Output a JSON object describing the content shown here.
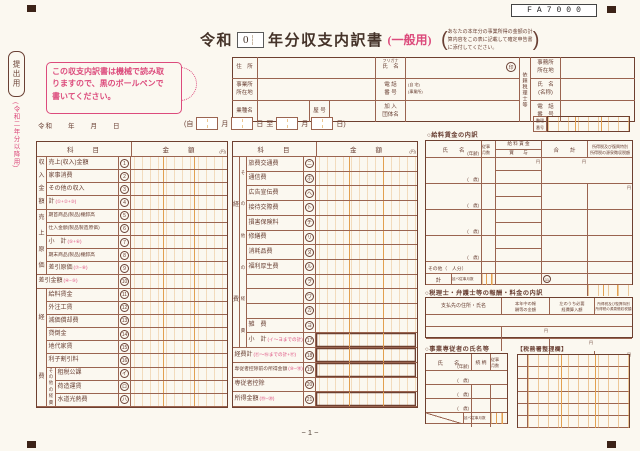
{
  "page": {
    "number": "− 1 −",
    "form_code": "FA7000"
  },
  "margin": {
    "submission": "提出用",
    "edition": "(令和二年分以降用)",
    "notice": "この収支内訳書は機械で読み取\nりますので、黒のボールペンで\n書いてください。"
  },
  "title": {
    "era": "令和",
    "year": "0",
    "main": "年分収支内訳書",
    "kind": "(一般用)",
    "paren_l": "(",
    "paren_r": ")",
    "note": "あなたの本年分の事業所得の金額の計\n算内容をこの表に記載して確定申告書\nに添付してください。"
  },
  "identity": {
    "address": "住　所",
    "biz_address": "事業所\n所在地",
    "industry": "業種名",
    "trade": "屋 号",
    "furigana": "フリガナ",
    "name": "氏　名",
    "seal": "印",
    "phone": "電 話\n番 号",
    "phone_home": "(自 宅)",
    "phone_biz": "(事業所)",
    "org": "加 入\n団体名",
    "agent": "依頼税理士等",
    "agent_office": "事務所\n所在地",
    "agent_name": "氏　名\n(名称)",
    "agent_phone": "電　話\n番　号"
  },
  "dateline": {
    "era_line": "令和　　年　　月　　日",
    "open": "(自",
    "m1": "月",
    "d1": "日",
    "to": "至",
    "m2": "月",
    "d2": "日)",
    "seiri_label": "整理\n番号"
  },
  "ledger": {
    "subject": "科　　目",
    "amount": "金　　額",
    "yen": "(円)",
    "strips": {
      "income": "収入金額",
      "cost": "売上原価",
      "expense": "経費",
      "other": "その他の経費"
    },
    "left_rows": [
      {
        "i": 1,
        "label": "売上(収入)金額",
        "code": "1"
      },
      {
        "i": 1,
        "label": "家事消費",
        "code": "2"
      },
      {
        "i": 1,
        "label": "その他の収入",
        "code": "3"
      },
      {
        "i": 1,
        "label": "計",
        "formula": "(①+②+③)",
        "code": "4"
      },
      {
        "i": 1,
        "label": "期首商品(製品)棚卸高",
        "code": "5",
        "small": true
      },
      {
        "i": 1,
        "label": "仕入金額(製品製造原価)",
        "code": "6",
        "small": true
      },
      {
        "i": 1,
        "label": "小　計",
        "formula": "(⑤+⑥)",
        "code": "7"
      },
      {
        "i": 1,
        "label": "期末商品(製品)棚卸高",
        "code": "8",
        "small": true
      },
      {
        "i": 1,
        "label": "差引原価",
        "formula": "(⑦−⑧)",
        "code": "9"
      },
      {
        "i": 0,
        "label": "差引金額",
        "formula": "(④−⑨)",
        "code": "10"
      },
      {
        "i": 1,
        "label": "給料賃金",
        "code": "11"
      },
      {
        "i": 1,
        "label": "外注工賃",
        "code": "12"
      },
      {
        "i": 1,
        "label": "減価償却費",
        "code": "13"
      },
      {
        "i": 1,
        "label": "貸倒金",
        "code": "14"
      },
      {
        "i": 1,
        "label": "地代家賃",
        "code": "15"
      },
      {
        "i": 1,
        "label": "利子割引料",
        "code": "16"
      },
      {
        "i": 2,
        "label": "租税公課",
        "code": "イ"
      },
      {
        "i": 2,
        "label": "荷造運賃",
        "code": "ロ"
      },
      {
        "i": 2,
        "label": "水道光熱費",
        "code": "ハ"
      }
    ],
    "middle_rows": [
      {
        "i": 2,
        "label": "旅費交通費",
        "code": "ニ"
      },
      {
        "i": 2,
        "label": "通信費",
        "code": "ホ"
      },
      {
        "i": 2,
        "label": "広告宣伝費",
        "code": "ヘ"
      },
      {
        "i": 2,
        "label": "接待交際費",
        "code": "ト"
      },
      {
        "i": 2,
        "label": "損害保険料",
        "code": "チ"
      },
      {
        "i": 2,
        "label": "修繕費",
        "code": "リ"
      },
      {
        "i": 2,
        "label": "消耗品費",
        "code": "ヌ"
      },
      {
        "i": 2,
        "label": "福利厚生費",
        "code": "ル"
      },
      {
        "i": 2,
        "label": "",
        "code": "ヲ"
      },
      {
        "i": 2,
        "label": "",
        "code": "ワ"
      },
      {
        "i": 2,
        "label": "",
        "code": "カ"
      },
      {
        "i": 2,
        "label": "雑　費",
        "code": "ヨ"
      },
      {
        "i": 2,
        "label": "小　計",
        "formula": "(イ〜ヨまでの計)",
        "code": "17",
        "bold": true
      },
      {
        "i": 0,
        "label": "経費計",
        "formula": "(⑪〜⑯までの計+⑰)",
        "code": "18",
        "bold": true
      },
      {
        "i": 0,
        "label": "専従者控除前の所得金額",
        "formula": "(⑩−⑱)",
        "code": "19",
        "bold": true,
        "small": true
      },
      {
        "i": 0,
        "label": "専従者控除",
        "code": "20"
      },
      {
        "i": 0,
        "label": "所得金額",
        "formula": "(⑲−⑳)",
        "code": "21",
        "bold": true
      }
    ]
  },
  "salary": {
    "heading": "○給料賃金の内訳",
    "name": "氏　　名",
    "age": "(年齢)",
    "months": "従事\n月数",
    "wage": "給 料 賃 金",
    "bonus": "賞　　与",
    "total": "合　　計",
    "tax1": "所得税及び復興特別",
    "tax2": "所得税の源泉徴収税額",
    "yen": "円",
    "age_ph": "(　歳)",
    "other": "その他（　人分）",
    "sum": "計",
    "nobe": "延べ従事月数",
    "link_code": "11"
  },
  "zeirishi": {
    "heading": "○税理士・弁護士等の報酬・料金の内訳",
    "payee": "支払先の住所・氏名",
    "amount": "本年中の報\n酬等の金額",
    "deduct": "左のうち必要\n経費算入額",
    "tax": "所得税及び復興特別\n所得税の源泉徴収税額",
    "yen": "円"
  },
  "senju": {
    "heading": "○事業専従者の氏名等",
    "name": "氏　　名",
    "age": "(年齢)",
    "relation": "続 柄",
    "months": "従事\n月数",
    "age_ph": "(　歳)",
    "nobe": "延べ従事月数"
  },
  "zeimusho": {
    "heading": "【税務署整理欄】"
  }
}
